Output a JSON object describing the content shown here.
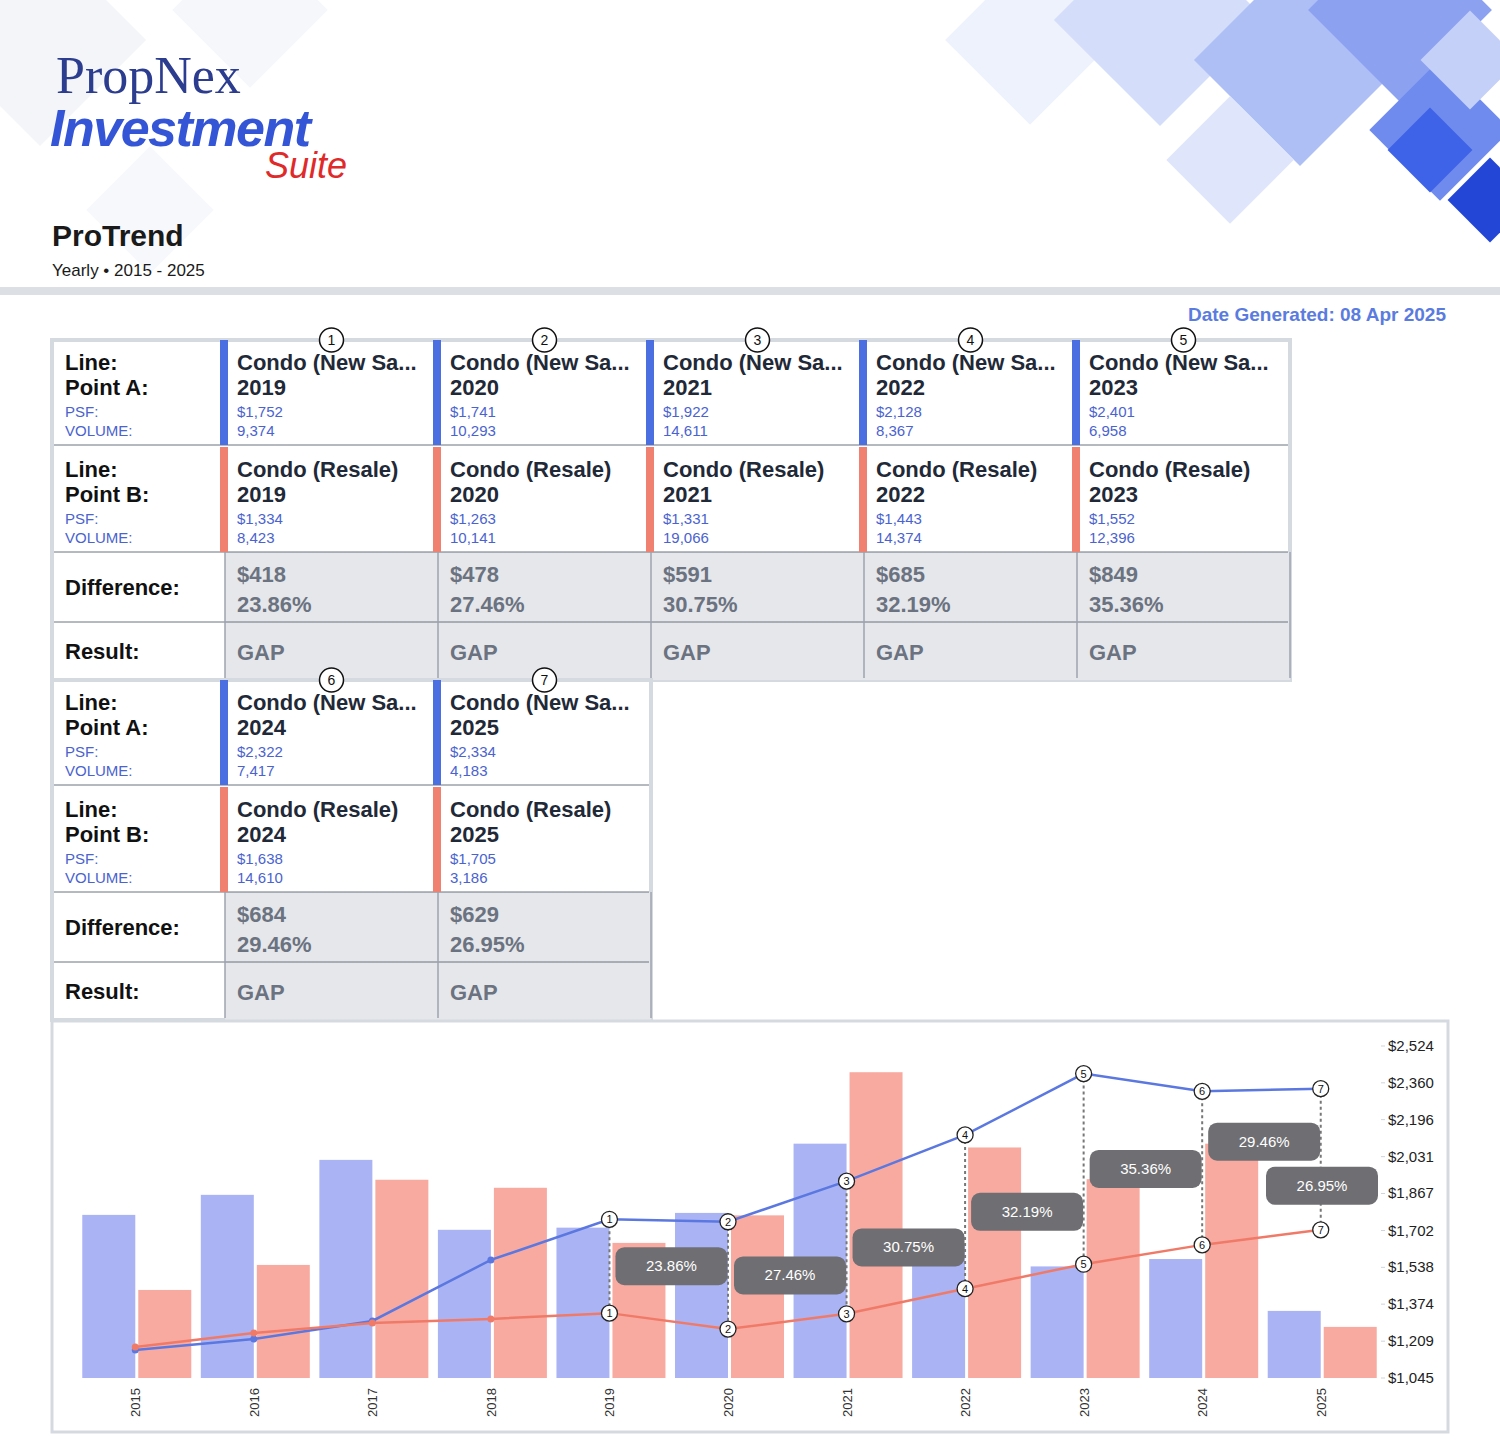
{
  "header": {
    "brand": "PropNex",
    "product": "Investment",
    "product_suffix": "Suite",
    "title": "ProTrend",
    "subtitle": "Yearly • 2015 - 2025",
    "date_generated": "Date Generated: 08 Apr 2025"
  },
  "table": {
    "row_labels": {
      "a": [
        "Line:",
        "Point A:",
        "PSF:",
        "VOLUME:"
      ],
      "b": [
        "Line:",
        "Point B:",
        "PSF:",
        "VOLUME:"
      ],
      "difference": "Difference:",
      "result": "Result:"
    },
    "columns": [
      {
        "marker": "1",
        "a": {
          "line": "Condo (New Sa...",
          "year": "2019",
          "psf": "$1,752",
          "volume": "9,374"
        },
        "b": {
          "line": "Condo (Resale)",
          "year": "2019",
          "psf": "$1,334",
          "volume": "8,423"
        },
        "difference": "$418",
        "percent": "23.86%",
        "result": "GAP"
      },
      {
        "marker": "2",
        "a": {
          "line": "Condo (New Sa...",
          "year": "2020",
          "psf": "$1,741",
          "volume": "10,293"
        },
        "b": {
          "line": "Condo (Resale)",
          "year": "2020",
          "psf": "$1,263",
          "volume": "10,141"
        },
        "difference": "$478",
        "percent": "27.46%",
        "result": "GAP"
      },
      {
        "marker": "3",
        "a": {
          "line": "Condo (New Sa...",
          "year": "2021",
          "psf": "$1,922",
          "volume": "14,611"
        },
        "b": {
          "line": "Condo (Resale)",
          "year": "2021",
          "psf": "$1,331",
          "volume": "19,066"
        },
        "difference": "$591",
        "percent": "30.75%",
        "result": "GAP"
      },
      {
        "marker": "4",
        "a": {
          "line": "Condo (New Sa...",
          "year": "2022",
          "psf": "$2,128",
          "volume": "8,367"
        },
        "b": {
          "line": "Condo (Resale)",
          "year": "2022",
          "psf": "$1,443",
          "volume": "14,374"
        },
        "difference": "$685",
        "percent": "32.19%",
        "result": "GAP"
      },
      {
        "marker": "5",
        "a": {
          "line": "Condo (New Sa...",
          "year": "2023",
          "psf": "$2,401",
          "volume": "6,958"
        },
        "b": {
          "line": "Condo (Resale)",
          "year": "2023",
          "psf": "$1,552",
          "volume": "12,396"
        },
        "difference": "$849",
        "percent": "35.36%",
        "result": "GAP"
      },
      {
        "marker": "6",
        "a": {
          "line": "Condo (New Sa...",
          "year": "2024",
          "psf": "$2,322",
          "volume": "7,417"
        },
        "b": {
          "line": "Condo (Resale)",
          "year": "2024",
          "psf": "$1,638",
          "volume": "14,610"
        },
        "difference": "$684",
        "percent": "29.46%",
        "result": "GAP"
      },
      {
        "marker": "7",
        "a": {
          "line": "Condo (New Sa...",
          "year": "2025",
          "psf": "$2,334",
          "volume": "4,183"
        },
        "b": {
          "line": "Condo (Resale)",
          "year": "2025",
          "psf": "$1,705",
          "volume": "3,186"
        },
        "difference": "$629",
        "percent": "26.95%",
        "result": "GAP"
      }
    ]
  },
  "chart_data": {
    "type": "bar",
    "categories": [
      "2015",
      "2016",
      "2017",
      "2018",
      "2019",
      "2020",
      "2021",
      "2022",
      "2023",
      "2024",
      "2025"
    ],
    "series": [
      {
        "type": "line",
        "color": "#5b77e0",
        "marker": "circle",
        "values": [
          1170,
          1219,
          1299,
          1571,
          1752,
          1741,
          1922,
          2128,
          2401,
          2322,
          2334
        ]
      },
      {
        "type": "line",
        "color": "#f07a68",
        "marker": "circle",
        "values": [
          1183,
          1245,
          1290,
          1308,
          1334,
          1263,
          1331,
          1443,
          1552,
          1638,
          1705
        ]
      },
      {
        "type": "bar",
        "axis": "y2",
        "color": "#aab4f5",
        "values": [
          10170,
          11420,
          13600,
          9240,
          9374,
          10293,
          14611,
          8367,
          6958,
          7417,
          4183
        ]
      },
      {
        "type": "bar",
        "axis": "y2",
        "color": "#f9aaa0",
        "values": [
          5490,
          7050,
          12360,
          11860,
          8423,
          10141,
          19066,
          14374,
          12396,
          14610,
          3186
        ]
      }
    ],
    "ylim": [
      1045,
      2524
    ],
    "yticks": [
      {
        "value": 1045,
        "label": "$1,045"
      },
      {
        "value": 1209,
        "label": "$1,209"
      },
      {
        "value": 1374,
        "label": "$1,374"
      },
      {
        "value": 1538,
        "label": "$1,538"
      },
      {
        "value": 1702,
        "label": "$1,702"
      },
      {
        "value": 1867,
        "label": "$1,867"
      },
      {
        "value": 2031,
        "label": "$2,031"
      },
      {
        "value": 2196,
        "label": "$2,196"
      },
      {
        "value": 2360,
        "label": "$2,360"
      },
      {
        "value": 2524,
        "label": "$2,524"
      }
    ],
    "y2lim": [
      0,
      20700
    ],
    "grid": false,
    "annotations": [
      {
        "category": "2019",
        "label": "1",
        "text": "23.86%"
      },
      {
        "category": "2020",
        "label": "2",
        "text": "27.46%"
      },
      {
        "category": "2021",
        "label": "3",
        "text": "30.75%"
      },
      {
        "category": "2022",
        "label": "4",
        "text": "32.19%"
      },
      {
        "category": "2023",
        "label": "5",
        "text": "35.36%"
      },
      {
        "category": "2024",
        "label": "6",
        "text": "29.46%"
      },
      {
        "category": "2025",
        "label": "7",
        "text": "26.95%"
      }
    ]
  }
}
